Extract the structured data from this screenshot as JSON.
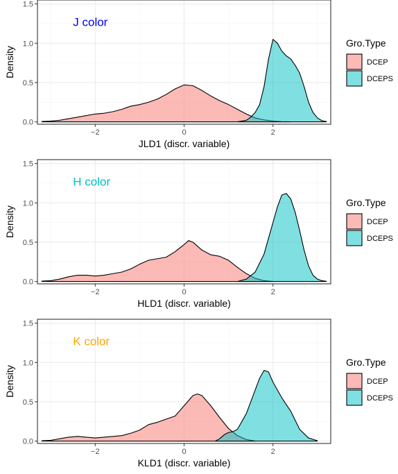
{
  "chart_data": [
    {
      "type": "area",
      "annotation": "J color",
      "annotation_color": "#0000FF",
      "xlabel": "JLD1 (discr. variable)",
      "ylabel": "Density",
      "xticks": [
        -2,
        0,
        2
      ],
      "xtick_labels": [
        "−2",
        "0",
        "2"
      ],
      "yticks": [
        0.0,
        0.5,
        1.0,
        1.5
      ],
      "ytick_labels": [
        "0.0",
        "0.5",
        "1.0",
        "1.5"
      ],
      "xlim": [
        -3.3,
        3.3
      ],
      "ylim": [
        -0.03,
        1.55
      ],
      "grid": true,
      "legend_title": "Gro.Type",
      "legend_position": "right",
      "series": [
        {
          "name": "DCEP",
          "fill": "#F8766D",
          "x": [
            -3.2,
            -3.0,
            -2.8,
            -2.6,
            -2.4,
            -2.2,
            -2.0,
            -1.8,
            -1.6,
            -1.4,
            -1.2,
            -1.0,
            -0.8,
            -0.6,
            -0.4,
            -0.2,
            0.0,
            0.2,
            0.4,
            0.6,
            0.8,
            1.0,
            1.2,
            1.4,
            1.6,
            1.8,
            2.0,
            2.2,
            2.4
          ],
          "y": [
            0.005,
            0.01,
            0.02,
            0.04,
            0.06,
            0.08,
            0.1,
            0.11,
            0.13,
            0.16,
            0.2,
            0.22,
            0.25,
            0.29,
            0.35,
            0.42,
            0.47,
            0.46,
            0.4,
            0.33,
            0.27,
            0.22,
            0.16,
            0.1,
            0.05,
            0.025,
            0.01,
            0.003,
            0.0
          ]
        },
        {
          "name": "DCEPS",
          "fill": "#00BFC4",
          "x": [
            1.2,
            1.4,
            1.5,
            1.6,
            1.7,
            1.8,
            1.9,
            2.0,
            2.1,
            2.2,
            2.3,
            2.4,
            2.5,
            2.6,
            2.7,
            2.8,
            2.9,
            3.0,
            3.1,
            3.2
          ],
          "y": [
            0.0,
            0.02,
            0.06,
            0.12,
            0.22,
            0.45,
            0.8,
            1.05,
            1.0,
            0.9,
            0.84,
            0.8,
            0.72,
            0.62,
            0.45,
            0.25,
            0.12,
            0.05,
            0.015,
            0.005
          ]
        }
      ]
    },
    {
      "type": "area",
      "annotation": "H color",
      "annotation_color": "#00BFC4",
      "xlabel": "HLD1 (discr. variable)",
      "ylabel": "Density",
      "xticks": [
        -2,
        0,
        2
      ],
      "xtick_labels": [
        "−2",
        "0",
        "2"
      ],
      "yticks": [
        0.0,
        0.5,
        1.0,
        1.5
      ],
      "ytick_labels": [
        "0.0",
        "0.5",
        "1.0",
        "1.5"
      ],
      "xlim": [
        -3.3,
        3.3
      ],
      "ylim": [
        -0.03,
        1.55
      ],
      "grid": true,
      "legend_title": "Gro.Type",
      "legend_position": "right",
      "series": [
        {
          "name": "DCEP",
          "fill": "#F8766D",
          "x": [
            -3.2,
            -3.0,
            -2.8,
            -2.6,
            -2.4,
            -2.2,
            -2.0,
            -1.8,
            -1.6,
            -1.4,
            -1.2,
            -1.0,
            -0.8,
            -0.6,
            -0.4,
            -0.2,
            0.0,
            0.1,
            0.2,
            0.4,
            0.6,
            0.8,
            1.0,
            1.2,
            1.4,
            1.6,
            1.8,
            2.0
          ],
          "y": [
            0.005,
            0.01,
            0.03,
            0.06,
            0.08,
            0.08,
            0.07,
            0.08,
            0.1,
            0.12,
            0.16,
            0.22,
            0.27,
            0.29,
            0.31,
            0.38,
            0.47,
            0.52,
            0.5,
            0.4,
            0.34,
            0.32,
            0.27,
            0.18,
            0.1,
            0.04,
            0.01,
            0.0
          ]
        },
        {
          "name": "DCEPS",
          "fill": "#00BFC4",
          "x": [
            1.2,
            1.4,
            1.6,
            1.8,
            2.0,
            2.1,
            2.2,
            2.3,
            2.4,
            2.5,
            2.6,
            2.7,
            2.8,
            2.9,
            3.0,
            3.1,
            3.2
          ],
          "y": [
            0.0,
            0.03,
            0.12,
            0.35,
            0.75,
            0.95,
            1.1,
            1.12,
            1.05,
            0.88,
            0.65,
            0.4,
            0.2,
            0.08,
            0.03,
            0.01,
            0.003
          ]
        }
      ]
    },
    {
      "type": "area",
      "annotation": "K color",
      "annotation_color": "#FFA500",
      "xlabel": "KLD1 (discr. variable)",
      "ylabel": "Density",
      "xticks": [
        -2,
        0,
        2
      ],
      "xtick_labels": [
        "−2",
        "0",
        "2"
      ],
      "yticks": [
        0.0,
        0.5,
        1.0,
        1.5
      ],
      "ytick_labels": [
        "0.0",
        "0.5",
        "1.0",
        "1.5"
      ],
      "xlim": [
        -3.3,
        3.3
      ],
      "ylim": [
        -0.03,
        1.55
      ],
      "grid": true,
      "legend_title": "Gro.Type",
      "legend_position": "right",
      "series": [
        {
          "name": "DCEP",
          "fill": "#F8766D",
          "x": [
            -3.2,
            -3.0,
            -2.8,
            -2.6,
            -2.4,
            -2.2,
            -2.0,
            -1.8,
            -1.6,
            -1.4,
            -1.2,
            -1.0,
            -0.8,
            -0.6,
            -0.4,
            -0.2,
            0.0,
            0.2,
            0.3,
            0.4,
            0.6,
            0.8,
            1.0,
            1.2,
            1.4,
            1.6
          ],
          "y": [
            0.005,
            0.01,
            0.03,
            0.05,
            0.06,
            0.05,
            0.04,
            0.05,
            0.06,
            0.07,
            0.1,
            0.14,
            0.21,
            0.24,
            0.28,
            0.32,
            0.45,
            0.58,
            0.6,
            0.58,
            0.45,
            0.3,
            0.16,
            0.07,
            0.02,
            0.0
          ]
        },
        {
          "name": "DCEPS",
          "fill": "#00BFC4",
          "x": [
            0.7,
            0.8,
            0.9,
            1.0,
            1.1,
            1.2,
            1.4,
            1.6,
            1.7,
            1.8,
            1.9,
            2.0,
            2.2,
            2.4,
            2.6,
            2.8,
            3.0
          ],
          "y": [
            0.0,
            0.03,
            0.08,
            0.11,
            0.12,
            0.15,
            0.35,
            0.65,
            0.8,
            0.9,
            0.88,
            0.75,
            0.55,
            0.38,
            0.15,
            0.04,
            0.005
          ]
        }
      ]
    }
  ]
}
